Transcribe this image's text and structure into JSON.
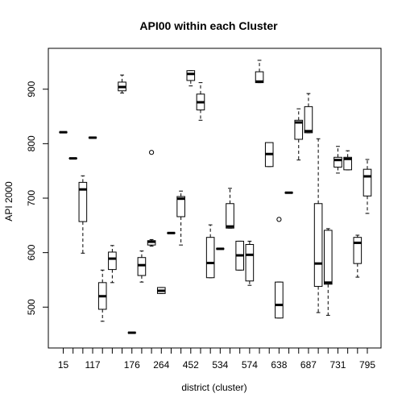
{
  "chart_data": {
    "type": "boxplot",
    "title": "API00 within each Cluster",
    "xlabel": "district (cluster)",
    "ylabel": "API 2000",
    "ylim": [
      425,
      975
    ],
    "yticks": [
      500,
      600,
      700,
      800,
      900
    ],
    "xtick_labels": [
      {
        "slot": 1,
        "label": "15"
      },
      {
        "slot": 4,
        "label": "117"
      },
      {
        "slot": 8,
        "label": "176"
      },
      {
        "slot": 11,
        "label": "264"
      },
      {
        "slot": 14,
        "label": "452"
      },
      {
        "slot": 17,
        "label": "534"
      },
      {
        "slot": 20,
        "label": "574"
      },
      {
        "slot": 23,
        "label": "638"
      },
      {
        "slot": 26,
        "label": "687"
      },
      {
        "slot": 29,
        "label": "731"
      },
      {
        "slot": 32,
        "label": "795"
      }
    ],
    "n_groups": 32,
    "boxes": [
      {
        "slot": 1,
        "lw": 821,
        "q1": 821,
        "med": 821,
        "q3": 821,
        "uw": 821,
        "outliers": []
      },
      {
        "slot": 2,
        "lw": 773,
        "q1": 773,
        "med": 773,
        "q3": 773,
        "uw": 773,
        "outliers": []
      },
      {
        "slot": 3,
        "lw": 599,
        "q1": 657,
        "med": 716,
        "q3": 729,
        "uw": 741,
        "outliers": []
      },
      {
        "slot": 4,
        "lw": 811,
        "q1": 811,
        "med": 811,
        "q3": 811,
        "uw": 811,
        "outliers": []
      },
      {
        "slot": 5,
        "lw": 474,
        "q1": 496,
        "med": 520,
        "q3": 545,
        "uw": 568,
        "outliers": []
      },
      {
        "slot": 6,
        "lw": 545,
        "q1": 569,
        "med": 589,
        "q3": 601,
        "uw": 613,
        "outliers": []
      },
      {
        "slot": 7,
        "lw": 893,
        "q1": 897,
        "med": 904,
        "q3": 913,
        "uw": 926,
        "outliers": []
      },
      {
        "slot": 8,
        "lw": 453,
        "q1": 453,
        "med": 453,
        "q3": 453,
        "uw": 453,
        "outliers": []
      },
      {
        "slot": 9,
        "lw": 546,
        "q1": 558,
        "med": 577,
        "q3": 591,
        "uw": 603,
        "outliers": []
      },
      {
        "slot": 10,
        "lw": 612,
        "q1": 614,
        "med": 620,
        "q3": 622,
        "uw": 624,
        "outliers": [
          784
        ]
      },
      {
        "slot": 11,
        "lw": 525,
        "q1": 525,
        "med": 530,
        "q3": 536,
        "uw": 536,
        "outliers": []
      },
      {
        "slot": 12,
        "lw": 636,
        "q1": 636,
        "med": 636,
        "q3": 636,
        "uw": 636,
        "outliers": []
      },
      {
        "slot": 13,
        "lw": 614,
        "q1": 666,
        "med": 699,
        "q3": 703,
        "uw": 713,
        "outliers": []
      },
      {
        "slot": 14,
        "lw": 906,
        "q1": 916,
        "med": 928,
        "q3": 934,
        "uw": 934,
        "outliers": []
      },
      {
        "slot": 15,
        "lw": 843,
        "q1": 862,
        "med": 876,
        "q3": 891,
        "uw": 912,
        "outliers": []
      },
      {
        "slot": 16,
        "lw": 554,
        "q1": 554,
        "med": 581,
        "q3": 628,
        "uw": 651,
        "outliers": []
      },
      {
        "slot": 17,
        "lw": 607,
        "q1": 607,
        "med": 607,
        "q3": 607,
        "uw": 607,
        "outliers": []
      },
      {
        "slot": 18,
        "lw": 645,
        "q1": 645,
        "med": 648,
        "q3": 690,
        "uw": 718,
        "outliers": []
      },
      {
        "slot": 19,
        "lw": 568,
        "q1": 568,
        "med": 595,
        "q3": 621,
        "uw": 621,
        "outliers": []
      },
      {
        "slot": 20,
        "lw": 540,
        "q1": 548,
        "med": 596,
        "q3": 615,
        "uw": 621,
        "outliers": []
      },
      {
        "slot": 21,
        "lw": 912,
        "q1": 912,
        "med": 914,
        "q3": 932,
        "uw": 953,
        "outliers": []
      },
      {
        "slot": 22,
        "lw": 758,
        "q1": 758,
        "med": 781,
        "q3": 802,
        "uw": 802,
        "outliers": []
      },
      {
        "slot": 23,
        "lw": 480,
        "q1": 480,
        "med": 504,
        "q3": 546,
        "uw": 546,
        "outliers": [
          661
        ]
      },
      {
        "slot": 24,
        "lw": 710,
        "q1": 710,
        "med": 710,
        "q3": 710,
        "uw": 710,
        "outliers": []
      },
      {
        "slot": 25,
        "lw": 770,
        "q1": 808,
        "med": 839,
        "q3": 843,
        "uw": 864,
        "outliers": []
      },
      {
        "slot": 26,
        "lw": 820,
        "q1": 820,
        "med": 823,
        "q3": 868,
        "uw": 892,
        "outliers": []
      },
      {
        "slot": 27,
        "lw": 490,
        "q1": 538,
        "med": 580,
        "q3": 690,
        "uw": 809,
        "outliers": []
      },
      {
        "slot": 28,
        "lw": 485,
        "q1": 542,
        "med": 545,
        "q3": 641,
        "uw": 644,
        "outliers": []
      },
      {
        "slot": 29,
        "lw": 746,
        "q1": 757,
        "med": 770,
        "q3": 775,
        "uw": 795,
        "outliers": []
      },
      {
        "slot": 30,
        "lw": 752,
        "q1": 752,
        "med": 772,
        "q3": 775,
        "uw": 787,
        "outliers": []
      },
      {
        "slot": 31,
        "lw": 555,
        "q1": 580,
        "med": 618,
        "q3": 628,
        "uw": 632,
        "outliers": []
      },
      {
        "slot": 32,
        "lw": 672,
        "q1": 704,
        "med": 740,
        "q3": 753,
        "uw": 771,
        "outliers": []
      }
    ],
    "extra_boxes_note_removed": true
  }
}
